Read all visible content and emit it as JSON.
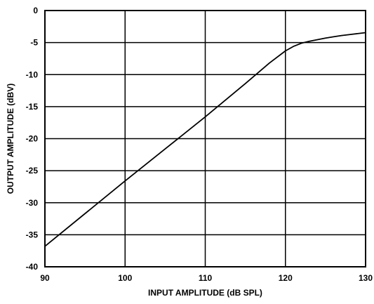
{
  "chart_data": {
    "type": "line",
    "title": "",
    "xlabel": "INPUT AMPLITUDE (dB SPL)",
    "ylabel": "OUTPUT AMPLITUDE (dBV)",
    "xlim": [
      90,
      130
    ],
    "ylim": [
      -40,
      0
    ],
    "grid": true,
    "x_ticks": [
      90,
      100,
      110,
      120,
      130
    ],
    "y_ticks": [
      0,
      -5,
      -10,
      -15,
      -20,
      -25,
      -30,
      -35,
      -40
    ],
    "x_tick_labels": [
      "90",
      "100",
      "110",
      "120",
      "130"
    ],
    "y_tick_labels": [
      "0",
      "-5",
      "-10",
      "-15",
      "-20",
      "-25",
      "-30",
      "-35",
      "-40"
    ],
    "colors": {
      "line": "#000000",
      "grid": "#000000",
      "background": "#ffffff"
    },
    "series": [
      {
        "x": [
          90,
          95,
          100,
          105,
          110,
          115,
          118,
          120,
          121,
          122,
          123,
          124,
          125,
          126,
          127,
          128,
          129,
          130
        ],
        "y": [
          -36.8,
          -31.7,
          -26.6,
          -21.6,
          -16.6,
          -11.4,
          -8.2,
          -6.3,
          -5.6,
          -5.1,
          -4.8,
          -4.55,
          -4.3,
          -4.1,
          -3.9,
          -3.75,
          -3.6,
          -3.45
        ]
      }
    ]
  }
}
